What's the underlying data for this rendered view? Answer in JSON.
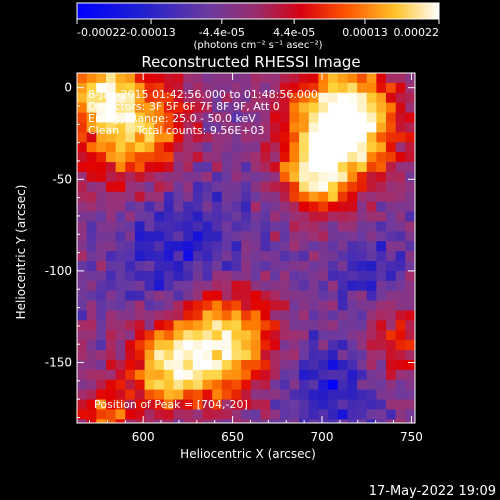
{
  "timestamp": "17-May-2022 19:09",
  "colorbar": {
    "ticks": [
      "-0.00022",
      "-0.00013",
      "-4.4e-05",
      "4.4e-05",
      "0.00013",
      "0.00022"
    ],
    "tick_values": [
      -0.00022,
      -0.00013,
      -4.4e-05,
      4.4e-05,
      0.00013,
      0.00022
    ],
    "range": [
      -0.00022,
      0.00022
    ],
    "unit_label": "(photons cm⁻² s⁻¹ asec⁻²)"
  },
  "chart_data": {
    "type": "heatmap",
    "title": "Reconstructed RHESSI Image",
    "xlabel": "Heliocentric X (arcsec)",
    "ylabel": "Heliocentric Y (arcsec)",
    "xlim": [
      563,
      752
    ],
    "ylim": [
      -183,
      8
    ],
    "xticks": [
      600,
      650,
      700,
      750
    ],
    "yticks": [
      0,
      -50,
      -100,
      -150
    ],
    "colormap": [
      "#0000ff",
      "#2a20c0",
      "#6a3aa0",
      "#a03070",
      "#e00000",
      "#ff7a00",
      "#ffd23a",
      "#ffffff"
    ],
    "annotations": [
      "8-Jan-2015 01:42:56.000 to 01:48:56.000",
      "Detectors: 3F 5F 6F 7F 8F 9F, Att 0",
      "Energy Range: 25.0 - 50.0 keV",
      "Clean     Total counts: 9.56E+03"
    ],
    "peak_label": "Position of Peak = [704,-20]",
    "peak": [
      704,
      -20
    ]
  }
}
